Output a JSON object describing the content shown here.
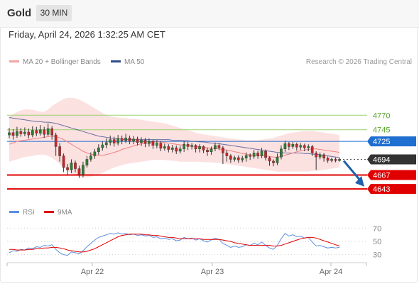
{
  "header": {
    "instrument": "Gold",
    "timeframe": "30 MIN",
    "datetime": "Friday, April 24, 2026 1:32:25 AM CET"
  },
  "colors": {
    "candle_up": "#2e7d32",
    "candle_down": "#c62828",
    "bollinger_fill": "#fbdcdc",
    "ma20": "#f08080",
    "ma50": "#3a4a8c",
    "resistance": "#9bd16e",
    "resistance_text": "#5aa62e",
    "pivot": "#1f6fd0",
    "support": "#e00000",
    "last_price": "#333333",
    "rsi": "#5b8fe0",
    "rsi_ma": "#e00000",
    "forecast_arrow": "#1f5fad"
  },
  "chart_data": [
    {
      "type": "candlestick",
      "legend": [
        {
          "name": "MA 20 + Bollinger Bands",
          "color": "#f4a3a3"
        },
        {
          "name": "MA 50",
          "color": "#2f4b8f"
        }
      ],
      "credit": "Research © 2026 Trading Central",
      "x_ticks": [
        "Apr 22",
        "Apr 23",
        "Apr 24"
      ],
      "ylim": [
        4620,
        4840
      ],
      "candles": [
        [
          4736,
          4740,
          4748,
          4730
        ],
        [
          4740,
          4735,
          4746,
          4728
        ],
        [
          4735,
          4742,
          4750,
          4731
        ],
        [
          4742,
          4738,
          4748,
          4733
        ],
        [
          4738,
          4741,
          4749,
          4734
        ],
        [
          4741,
          4736,
          4747,
          4730
        ],
        [
          4736,
          4744,
          4751,
          4732
        ],
        [
          4744,
          4739,
          4750,
          4734
        ],
        [
          4739,
          4745,
          4753,
          4735
        ],
        [
          4745,
          4737,
          4750,
          4731
        ],
        [
          4737,
          4747,
          4756,
          4734
        ],
        [
          4747,
          4736,
          4751,
          4728
        ],
        [
          4736,
          4716,
          4740,
          4700
        ],
        [
          4716,
          4700,
          4722,
          4690
        ],
        [
          4700,
          4680,
          4704,
          4672
        ],
        [
          4680,
          4676,
          4686,
          4667
        ],
        [
          4676,
          4688,
          4694,
          4670
        ],
        [
          4688,
          4678,
          4692,
          4672
        ],
        [
          4678,
          4668,
          4683,
          4662
        ],
        [
          4668,
          4684,
          4690,
          4663
        ],
        [
          4684,
          4694,
          4700,
          4680
        ],
        [
          4694,
          4700,
          4706,
          4690
        ],
        [
          4700,
          4707,
          4712,
          4695
        ],
        [
          4707,
          4714,
          4720,
          4702
        ],
        [
          4714,
          4719,
          4725,
          4709
        ],
        [
          4719,
          4723,
          4730,
          4713
        ],
        [
          4723,
          4728,
          4735,
          4718
        ],
        [
          4728,
          4722,
          4733,
          4716
        ],
        [
          4722,
          4730,
          4736,
          4718
        ],
        [
          4730,
          4726,
          4735,
          4720
        ],
        [
          4726,
          4731,
          4738,
          4722
        ],
        [
          4731,
          4725,
          4735,
          4720
        ],
        [
          4725,
          4729,
          4734,
          4720
        ],
        [
          4729,
          4723,
          4733,
          4718
        ],
        [
          4723,
          4727,
          4732,
          4717
        ],
        [
          4727,
          4721,
          4731,
          4715
        ],
        [
          4721,
          4725,
          4730,
          4716
        ],
        [
          4725,
          4718,
          4728,
          4712
        ],
        [
          4718,
          4722,
          4727,
          4713
        ],
        [
          4722,
          4713,
          4725,
          4708
        ],
        [
          4713,
          4716,
          4721,
          4709
        ],
        [
          4716,
          4711,
          4720,
          4706
        ],
        [
          4711,
          4714,
          4719,
          4706
        ],
        [
          4714,
          4708,
          4718,
          4703
        ],
        [
          4708,
          4712,
          4717,
          4704
        ],
        [
          4712,
          4720,
          4726,
          4707
        ],
        [
          4720,
          4716,
          4724,
          4710
        ],
        [
          4716,
          4718,
          4722,
          4711
        ],
        [
          4718,
          4712,
          4720,
          4706
        ],
        [
          4712,
          4716,
          4720,
          4706
        ],
        [
          4716,
          4710,
          4718,
          4705
        ],
        [
          4710,
          4707,
          4714,
          4700
        ],
        [
          4707,
          4712,
          4716,
          4702
        ],
        [
          4712,
          4718,
          4723,
          4708
        ],
        [
          4718,
          4714,
          4722,
          4710
        ],
        [
          4714,
          4705,
          4717,
          4686
        ],
        [
          4705,
          4700,
          4710,
          4690
        ],
        [
          4700,
          4694,
          4703,
          4688
        ],
        [
          4694,
          4697,
          4700,
          4690
        ],
        [
          4697,
          4693,
          4701,
          4688
        ],
        [
          4693,
          4696,
          4700,
          4689
        ],
        [
          4696,
          4701,
          4706,
          4690
        ],
        [
          4701,
          4699,
          4704,
          4693
        ],
        [
          4699,
          4705,
          4710,
          4695
        ],
        [
          4705,
          4700,
          4709,
          4695
        ],
        [
          4700,
          4708,
          4714,
          4696
        ],
        [
          4708,
          4697,
          4711,
          4692
        ],
        [
          4697,
          4691,
          4699,
          4683
        ],
        [
          4691,
          4688,
          4694,
          4682
        ],
        [
          4688,
          4698,
          4704,
          4684
        ],
        [
          4698,
          4712,
          4718,
          4694
        ],
        [
          4712,
          4721,
          4726,
          4707
        ],
        [
          4721,
          4716,
          4724,
          4710
        ],
        [
          4716,
          4720,
          4724,
          4712
        ],
        [
          4720,
          4715,
          4723,
          4709
        ],
        [
          4715,
          4718,
          4722,
          4710
        ],
        [
          4718,
          4714,
          4721,
          4708
        ],
        [
          4714,
          4716,
          4720,
          4708
        ],
        [
          4716,
          4705,
          4719,
          4700
        ],
        [
          4705,
          4698,
          4708,
          4676
        ],
        [
          4698,
          4702,
          4706,
          4694
        ],
        [
          4702,
          4696,
          4705,
          4690
        ],
        [
          4696,
          4692,
          4699,
          4688
        ],
        [
          4692,
          4694,
          4697,
          4689
        ],
        [
          4694,
          4692,
          4697,
          4689
        ],
        [
          4692,
          4694,
          4697,
          4690
        ]
      ],
      "ma20": [
        4720,
        4722,
        4725,
        4726,
        4727,
        4728,
        4729,
        4730,
        4731,
        4732,
        4733,
        4734,
        4733,
        4731,
        4728,
        4724,
        4720,
        4716,
        4712,
        4708,
        4705,
        4703,
        4702,
        4701,
        4701,
        4702,
        4704,
        4706,
        4708,
        4711,
        4713,
        4715,
        4717,
        4719,
        4721,
        4722,
        4723,
        4724,
        4724,
        4724,
        4723,
        4722,
        4721,
        4720,
        4719,
        4718,
        4718,
        4717,
        4716,
        4716,
        4715,
        4714,
        4713,
        4713,
        4712,
        4711,
        4710,
        4709,
        4707,
        4706,
        4704,
        4703,
        4702,
        4701,
        4700,
        4700,
        4700,
        4699,
        4698,
        4698,
        4699,
        4701,
        4703,
        4705,
        4707,
        4709,
        4710,
        4711,
        4712,
        4712,
        4711,
        4710,
        4709,
        4708,
        4707,
        4706
      ],
      "ma50": [
        4766,
        4765,
        4764,
        4763,
        4762,
        4761,
        4760,
        4759,
        4759,
        4758,
        4758,
        4757,
        4756,
        4754,
        4752,
        4750,
        4748,
        4746,
        4744,
        4742,
        4740,
        4738,
        4736,
        4734,
        4733,
        4732,
        4731,
        4730,
        4729,
        4729,
        4728,
        4728,
        4728,
        4728,
        4728,
        4728,
        4728,
        4728,
        4728,
        4728,
        4728,
        4728,
        4727,
        4727,
        4727,
        4726,
        4726,
        4725,
        4725,
        4724,
        4724,
        4723,
        4722,
        4722,
        4721,
        4720,
        4719,
        4718,
        4717,
        4716,
        4715,
        4714,
        4713,
        4712,
        4711,
        4710,
        4709,
        4708,
        4707,
        4706,
        4706,
        4705,
        4705,
        4705,
        4705,
        4705,
        4704,
        4704,
        4703,
        4703,
        4702,
        4701,
        4700,
        4699,
        4698,
        4697
      ],
      "bb_upper": [
        4768,
        4772,
        4776,
        4778,
        4780,
        4780,
        4779,
        4778,
        4776,
        4776,
        4780,
        4786,
        4790,
        4794,
        4798,
        4800,
        4800,
        4799,
        4797,
        4794,
        4790,
        4786,
        4782,
        4778,
        4774,
        4770,
        4768,
        4767,
        4766,
        4765,
        4765,
        4764,
        4764,
        4763,
        4762,
        4761,
        4760,
        4759,
        4758,
        4757,
        4756,
        4754,
        4752,
        4750,
        4748,
        4746,
        4744,
        4742,
        4740,
        4738,
        4737,
        4736,
        4735,
        4734,
        4733,
        4732,
        4731,
        4730,
        4729,
        4728,
        4728,
        4727,
        4727,
        4727,
        4727,
        4728,
        4729,
        4730,
        4731,
        4733,
        4735,
        4737,
        4739,
        4740,
        4741,
        4742,
        4743,
        4743,
        4743,
        4742,
        4741,
        4740,
        4739,
        4738,
        4737,
        4736
      ],
      "bb_lower": [
        4690,
        4692,
        4694,
        4696,
        4698,
        4699,
        4700,
        4701,
        4702,
        4702,
        4700,
        4696,
        4692,
        4686,
        4680,
        4674,
        4670,
        4667,
        4664,
        4663,
        4663,
        4664,
        4666,
        4668,
        4671,
        4674,
        4677,
        4680,
        4682,
        4684,
        4686,
        4687,
        4688,
        4689,
        4690,
        4691,
        4692,
        4693,
        4693,
        4693,
        4693,
        4692,
        4692,
        4691,
        4690,
        4690,
        4690,
        4690,
        4690,
        4690,
        4689,
        4689,
        4689,
        4688,
        4688,
        4687,
        4686,
        4685,
        4684,
        4683,
        4682,
        4681,
        4680,
        4679,
        4678,
        4677,
        4676,
        4675,
        4674,
        4673,
        4673,
        4673,
        4673,
        4673,
        4673,
        4673,
        4673,
        4673,
        4674,
        4674,
        4675,
        4676,
        4677,
        4678,
        4679,
        4680
      ],
      "levels": [
        {
          "kind": "resistance",
          "value": 4770,
          "label": "4770"
        },
        {
          "kind": "resistance",
          "value": 4745,
          "label": "4745"
        },
        {
          "kind": "pivot",
          "value": 4725,
          "label": "4725"
        },
        {
          "kind": "last",
          "value": 4694,
          "label": "4694"
        },
        {
          "kind": "support",
          "value": 4667,
          "label": "4667"
        },
        {
          "kind": "support",
          "value": 4643,
          "label": "4643"
        }
      ],
      "forecast": {
        "from": 4694,
        "to": 4652,
        "direction": "down"
      }
    },
    {
      "type": "line",
      "legend": [
        {
          "name": "RSI",
          "color": "#5b8fe0"
        },
        {
          "name": "9MA",
          "color": "#e00000"
        }
      ],
      "ylim": [
        20,
        80
      ],
      "y_ticks": [
        "70",
        "50",
        "30"
      ],
      "rsi": [
        33,
        36,
        35,
        38,
        37,
        40,
        39,
        42,
        41,
        44,
        43,
        45,
        38,
        33,
        30,
        29,
        34,
        33,
        31,
        36,
        42,
        47,
        52,
        56,
        58,
        60,
        62,
        61,
        63,
        61,
        62,
        60,
        61,
        59,
        60,
        58,
        59,
        56,
        57,
        54,
        55,
        53,
        54,
        51,
        52,
        56,
        54,
        55,
        52,
        54,
        51,
        49,
        52,
        55,
        53,
        47,
        44,
        41,
        43,
        41,
        42,
        45,
        44,
        47,
        45,
        49,
        44,
        40,
        38,
        44,
        54,
        62,
        58,
        60,
        57,
        58,
        55,
        56,
        49,
        43,
        44,
        42,
        40,
        41,
        40,
        41
      ],
      "rsi_ma": [
        38,
        38,
        37,
        37,
        37,
        38,
        38,
        39,
        39,
        40,
        40,
        41,
        41,
        40,
        39,
        37,
        36,
        35,
        34,
        34,
        35,
        37,
        39,
        42,
        45,
        48,
        51,
        54,
        57,
        59,
        60,
        61,
        61,
        61,
        61,
        60,
        60,
        59,
        59,
        58,
        57,
        56,
        56,
        55,
        54,
        54,
        54,
        54,
        54,
        54,
        53,
        53,
        53,
        53,
        53,
        52,
        51,
        50,
        48,
        47,
        46,
        45,
        44,
        44,
        44,
        44,
        44,
        44,
        43,
        43,
        44,
        46,
        48,
        50,
        52,
        54,
        55,
        56,
        56,
        55,
        53,
        51,
        49,
        47,
        45,
        43
      ]
    }
  ]
}
